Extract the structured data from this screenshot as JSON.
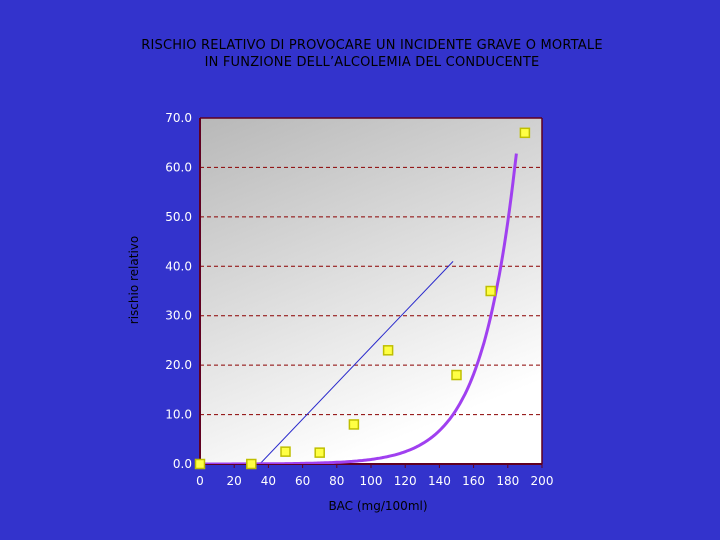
{
  "chart_data": {
    "type": "scatter",
    "title_lines": [
      "RISCHIO RELATIVO DI PROVOCARE UN INCIDENTE GRAVE O MORTALE",
      "IN FUNZIONE DELL’ALCOLEMIA DEL CONDUCENTE"
    ],
    "xlabel": "BAC (mg/100ml)",
    "ylabel": "rischio relativo",
    "xlim": [
      0,
      200
    ],
    "ylim": [
      0,
      70
    ],
    "x_ticks": [
      "0",
      "20",
      "40",
      "60",
      "80",
      "100",
      "120",
      "140",
      "160",
      "180",
      "200"
    ],
    "y_ticks": [
      "0.0",
      "10.0",
      "20.0",
      "30.0",
      "40.0",
      "50.0",
      "60.0",
      "70.0"
    ],
    "grid": "horizontal-dashed",
    "points": [
      {
        "x": 0,
        "y": 0
      },
      {
        "x": 30,
        "y": 0
      },
      {
        "x": 50,
        "y": 2.5
      },
      {
        "x": 70,
        "y": 2.3
      },
      {
        "x": 90,
        "y": 8
      },
      {
        "x": 110,
        "y": 23
      },
      {
        "x": 150,
        "y": 18
      },
      {
        "x": 170,
        "y": 35
      },
      {
        "x": 190,
        "y": 67
      }
    ],
    "linear_trend": [
      {
        "x": 35,
        "y": 0
      },
      {
        "x": 148,
        "y": 41
      }
    ],
    "exponential_curve": {
      "a": 0.0065,
      "b": 0.0496,
      "x_start": 0,
      "x_end": 185
    },
    "colors": {
      "background": "#3333cc",
      "plot_area_top": "#b8b8b8",
      "plot_area_bottom": "#ffffff",
      "grid": "#8b0000",
      "frame": "#600020",
      "points_fill": "#ffff44",
      "points_border": "#bfbf00",
      "curve": "#a040f0",
      "trend": "#2a2acc"
    }
  }
}
